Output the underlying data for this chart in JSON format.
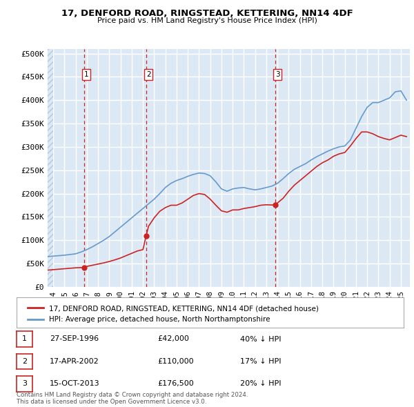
{
  "title": "17, DENFORD ROAD, RINGSTEAD, KETTERING, NN14 4DF",
  "subtitle": "Price paid vs. HM Land Registry's House Price Index (HPI)",
  "background_color": "#dce9f5",
  "plot_bg_color": "#dce9f5",
  "grid_color": "#ffffff",
  "hatch_color": "#b0c8e0",
  "ylabel_ticks": [
    "£0",
    "£50K",
    "£100K",
    "£150K",
    "£200K",
    "£250K",
    "£300K",
    "£350K",
    "£400K",
    "£450K",
    "£500K"
  ],
  "ytick_values": [
    0,
    50000,
    100000,
    150000,
    200000,
    250000,
    300000,
    350000,
    400000,
    450000,
    500000
  ],
  "xlim_start": 1993.5,
  "xlim_end": 2025.8,
  "ylim_min": 0,
  "ylim_max": 510000,
  "sale_dates": [
    1996.74,
    2002.29,
    2013.79
  ],
  "sale_prices": [
    42000,
    110000,
    176500
  ],
  "sale_labels": [
    "1",
    "2",
    "3"
  ],
  "hpi_line_color": "#6699cc",
  "price_line_color": "#cc2222",
  "dashed_color": "#cc2222",
  "legend_entries": [
    "17, DENFORD ROAD, RINGSTEAD, KETTERING, NN14 4DF (detached house)",
    "HPI: Average price, detached house, North Northamptonshire"
  ],
  "table_rows": [
    {
      "num": "1",
      "date": "27-SEP-1996",
      "price": "£42,000",
      "hpi": "40% ↓ HPI"
    },
    {
      "num": "2",
      "date": "17-APR-2002",
      "price": "£110,000",
      "hpi": "17% ↓ HPI"
    },
    {
      "num": "3",
      "date": "15-OCT-2013",
      "price": "£176,500",
      "hpi": "20% ↓ HPI"
    }
  ],
  "footer_text": "Contains HM Land Registry data © Crown copyright and database right 2024.\nThis data is licensed under the Open Government Licence v3.0.",
  "xtick_years": [
    1994,
    1995,
    1996,
    1997,
    1998,
    1999,
    2000,
    2001,
    2002,
    2003,
    2004,
    2005,
    2006,
    2007,
    2008,
    2009,
    2010,
    2011,
    2012,
    2013,
    2014,
    2015,
    2016,
    2017,
    2018,
    2019,
    2020,
    2021,
    2022,
    2023,
    2024,
    2025
  ],
  "hpi_x": [
    1993.5,
    1994.0,
    1994.5,
    1995.0,
    1995.5,
    1996.0,
    1996.5,
    1997.0,
    1997.5,
    1998.0,
    1998.5,
    1999.0,
    1999.5,
    2000.0,
    2000.5,
    2001.0,
    2001.5,
    2002.0,
    2002.5,
    2003.0,
    2003.5,
    2004.0,
    2004.5,
    2005.0,
    2005.5,
    2006.0,
    2006.5,
    2007.0,
    2007.5,
    2008.0,
    2008.5,
    2009.0,
    2009.5,
    2010.0,
    2010.5,
    2011.0,
    2011.5,
    2012.0,
    2012.5,
    2013.0,
    2013.5,
    2014.0,
    2014.5,
    2015.0,
    2015.5,
    2016.0,
    2016.5,
    2017.0,
    2017.5,
    2018.0,
    2018.5,
    2019.0,
    2019.5,
    2020.0,
    2020.5,
    2021.0,
    2021.5,
    2022.0,
    2022.5,
    2023.0,
    2023.5,
    2024.0,
    2024.5,
    2025.0,
    2025.5
  ],
  "hpi_y": [
    65000,
    66000,
    67000,
    68000,
    69500,
    71000,
    75000,
    80000,
    86000,
    93000,
    100000,
    108000,
    118000,
    128000,
    138000,
    148000,
    158000,
    168000,
    178000,
    188000,
    200000,
    213000,
    222000,
    228000,
    232000,
    237000,
    241000,
    244000,
    243000,
    238000,
    225000,
    210000,
    205000,
    210000,
    212000,
    213000,
    210000,
    208000,
    210000,
    213000,
    216000,
    222000,
    232000,
    243000,
    252000,
    258000,
    264000,
    272000,
    279000,
    285000,
    291000,
    296000,
    300000,
    302000,
    315000,
    340000,
    365000,
    385000,
    395000,
    395000,
    400000,
    405000,
    418000,
    420000,
    400000
  ],
  "price_x": [
    1993.5,
    1994.0,
    1994.5,
    1995.0,
    1995.5,
    1996.0,
    1996.5,
    1996.74,
    1997.0,
    1997.5,
    1998.0,
    1998.5,
    1999.0,
    1999.5,
    2000.0,
    2000.5,
    2001.0,
    2001.5,
    2002.0,
    2002.29,
    2002.5,
    2003.0,
    2003.5,
    2004.0,
    2004.5,
    2005.0,
    2005.5,
    2006.0,
    2006.5,
    2007.0,
    2007.5,
    2008.0,
    2008.5,
    2009.0,
    2009.5,
    2010.0,
    2010.5,
    2011.0,
    2011.5,
    2012.0,
    2012.5,
    2013.0,
    2013.5,
    2013.79,
    2014.0,
    2014.5,
    2015.0,
    2015.5,
    2016.0,
    2016.5,
    2017.0,
    2017.5,
    2018.0,
    2018.5,
    2019.0,
    2019.5,
    2020.0,
    2020.5,
    2021.0,
    2021.5,
    2022.0,
    2022.5,
    2023.0,
    2023.5,
    2024.0,
    2024.5,
    2025.0,
    2025.5
  ],
  "price_y": [
    36000,
    37000,
    38000,
    39000,
    40000,
    41000,
    41500,
    42000,
    44000,
    46500,
    49000,
    51500,
    54500,
    58000,
    62000,
    67000,
    72000,
    77000,
    80000,
    110000,
    130000,
    148000,
    162000,
    170000,
    175000,
    175000,
    180000,
    188000,
    196000,
    200000,
    198000,
    188000,
    175000,
    163000,
    160000,
    165000,
    165000,
    168000,
    170000,
    172000,
    175000,
    176000,
    175500,
    176500,
    180000,
    190000,
    205000,
    218000,
    228000,
    238000,
    248000,
    258000,
    266000,
    272000,
    280000,
    285000,
    288000,
    302000,
    318000,
    332000,
    332000,
    328000,
    322000,
    318000,
    315000,
    320000,
    325000,
    322000
  ]
}
